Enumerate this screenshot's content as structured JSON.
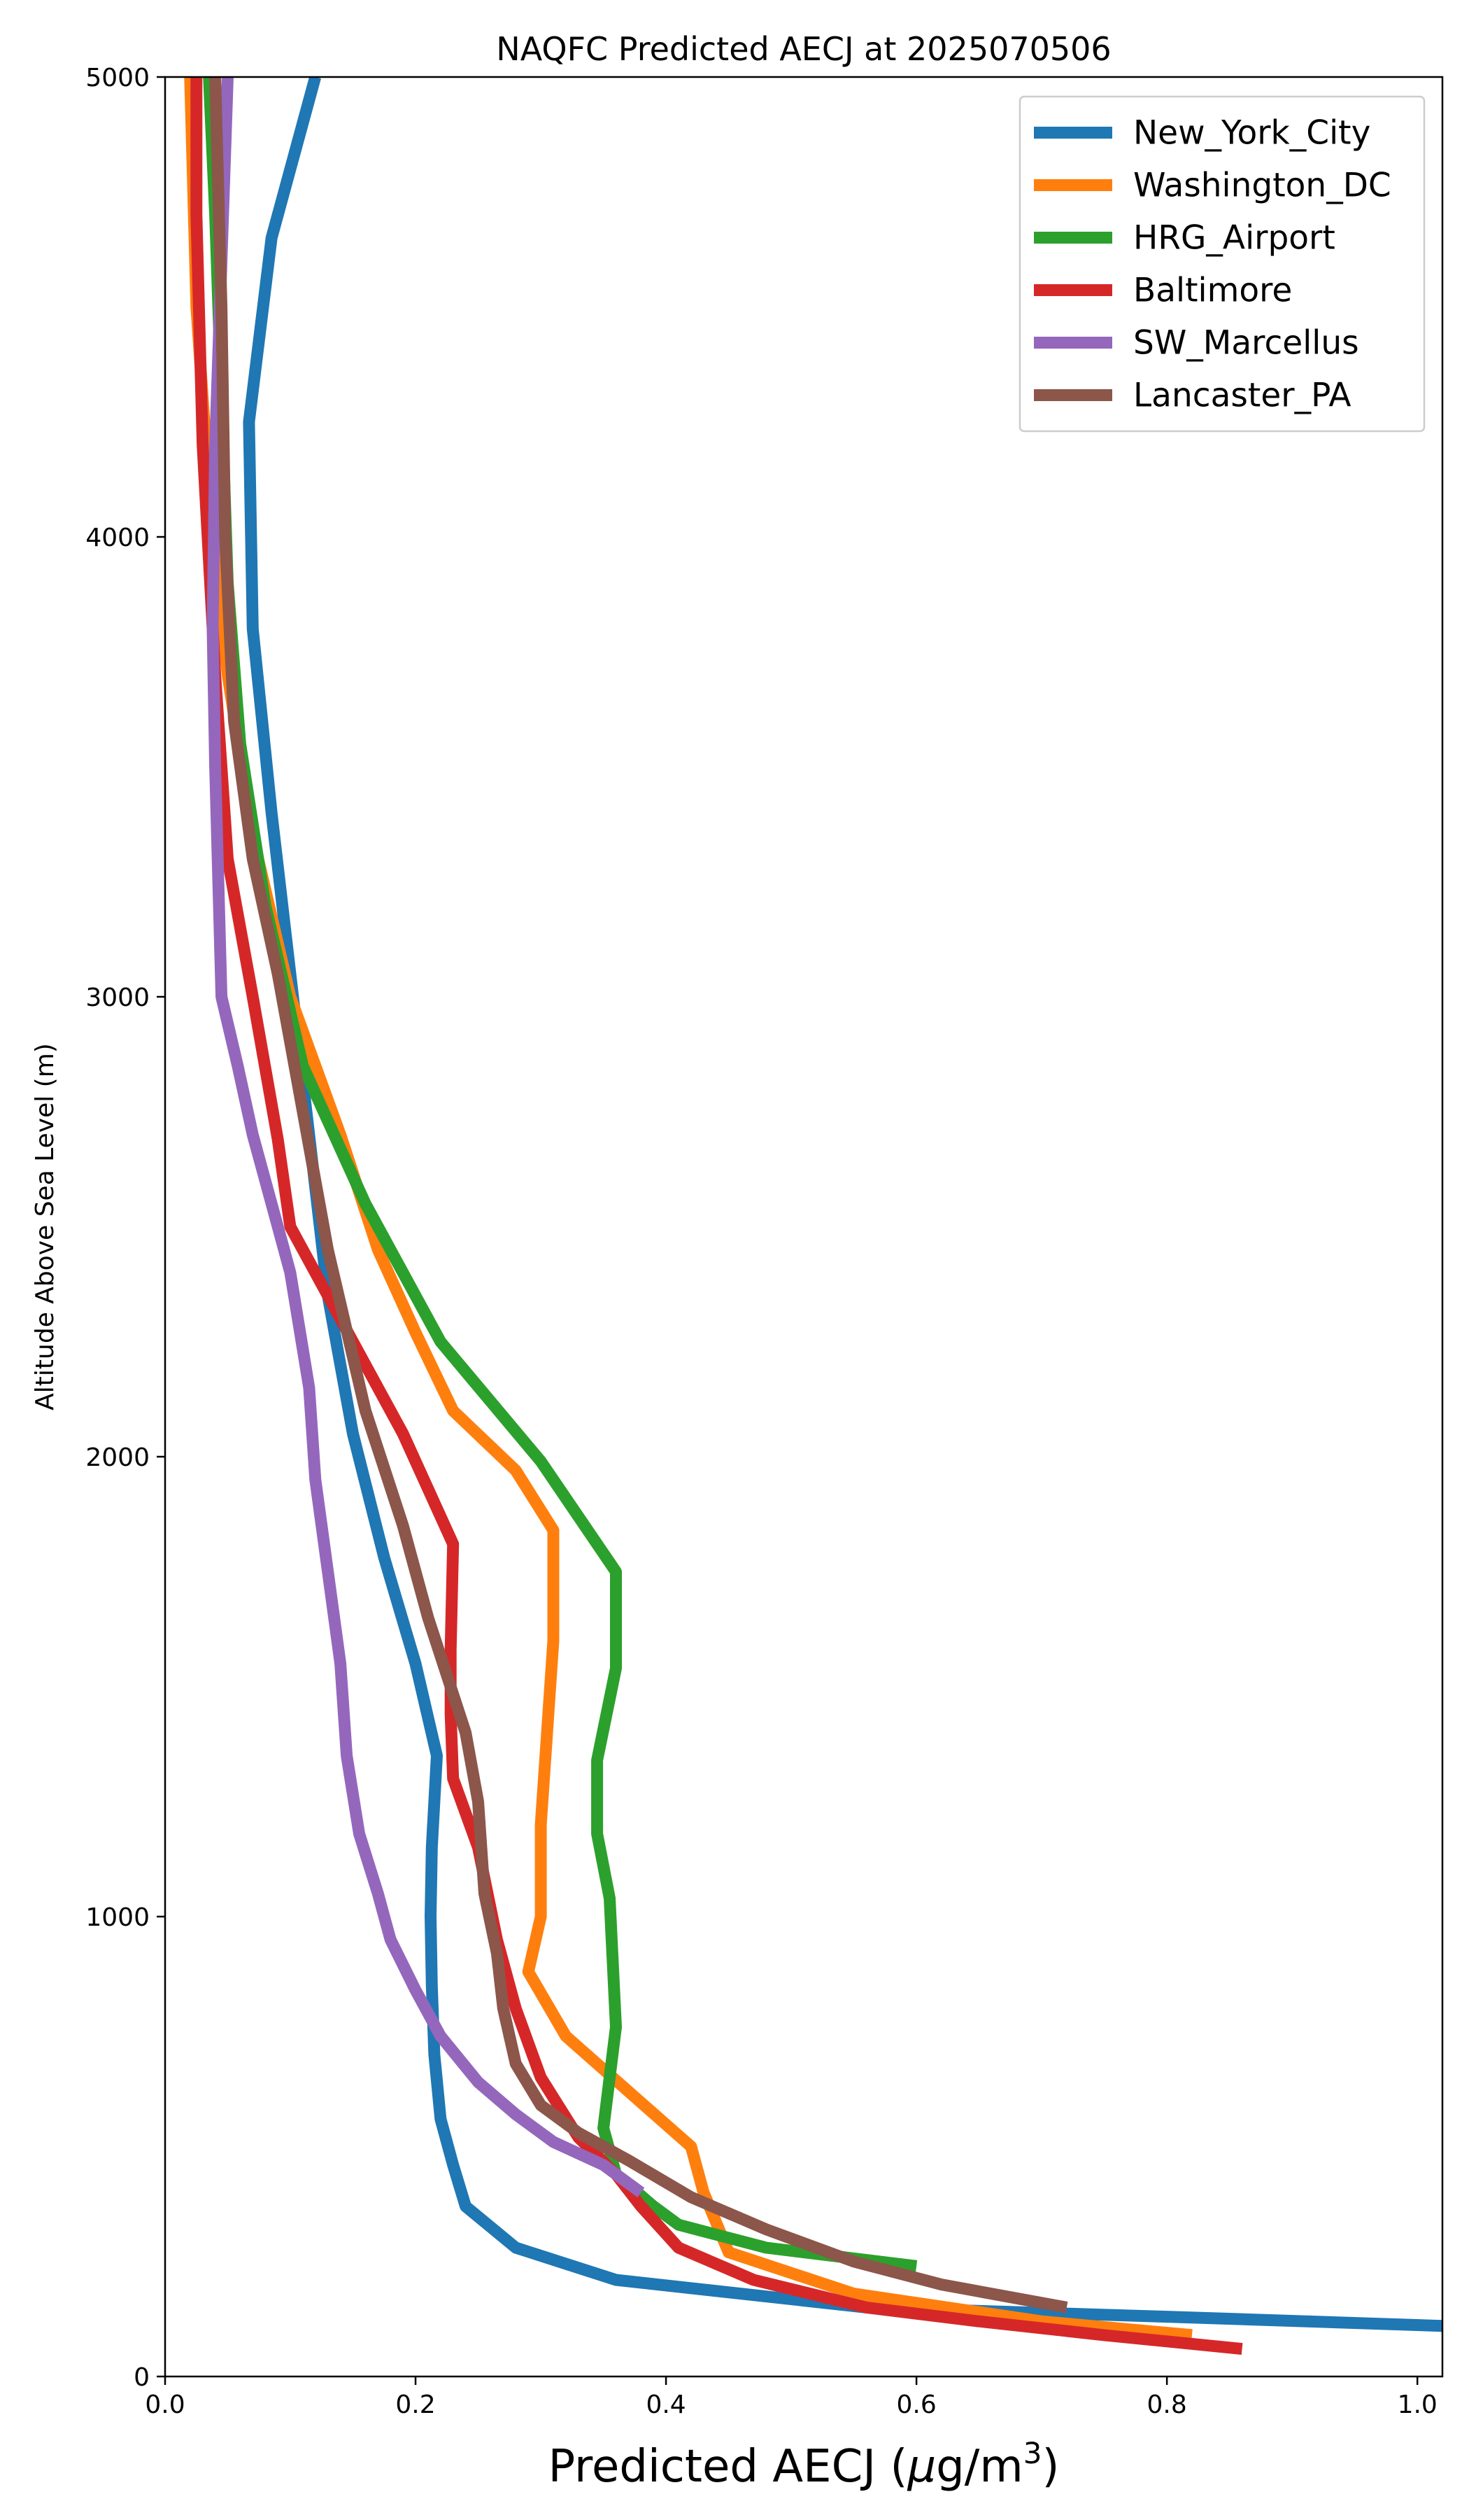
{
  "chart_data": {
    "type": "line",
    "title": "NAQFC Predicted AECJ at 2025070506",
    "xlabel": "Predicted AECJ (",
    "xlabel_unit_prefix": "μ",
    "xlabel_unit_main": "g/m",
    "xlabel_unit_sup": "3",
    "xlabel_close": ")",
    "ylabel": "Altitude Above Sea Level (m)",
    "xlim": [
      0.0,
      1.02
    ],
    "ylim": [
      0,
      5000
    ],
    "xticks": [
      0.0,
      0.2,
      0.4,
      0.6,
      0.8,
      1.0
    ],
    "xtick_labels": [
      "0.0",
      "0.2",
      "0.4",
      "0.6",
      "0.8",
      "1.0"
    ],
    "yticks": [
      0,
      1000,
      2000,
      3000,
      4000,
      5000
    ],
    "ytick_labels": [
      "0",
      "1000",
      "2000",
      "3000",
      "4000",
      "5000"
    ],
    "grid": false,
    "legend_position": "top-right",
    "series": [
      {
        "name": "New_York_City",
        "color": "#1f77b4",
        "points": [
          [
            1.02,
            110
          ],
          [
            0.8,
            130
          ],
          [
            0.56,
            150
          ],
          [
            0.36,
            210
          ],
          [
            0.28,
            280
          ],
          [
            0.24,
            370
          ],
          [
            0.23,
            460
          ],
          [
            0.22,
            560
          ],
          [
            0.215,
            700
          ],
          [
            0.213,
            850
          ],
          [
            0.212,
            1000
          ],
          [
            0.213,
            1150
          ],
          [
            0.217,
            1350
          ],
          [
            0.2,
            1550
          ],
          [
            0.175,
            1780
          ],
          [
            0.15,
            2050
          ],
          [
            0.13,
            2350
          ],
          [
            0.115,
            2700
          ],
          [
            0.1,
            3050
          ],
          [
            0.085,
            3400
          ],
          [
            0.07,
            3800
          ],
          [
            0.067,
            4250
          ],
          [
            0.085,
            4650
          ],
          [
            0.12,
            5000
          ]
        ]
      },
      {
        "name": "Washington_DC",
        "color": "#ff7f0e",
        "points": [
          [
            0.82,
            90
          ],
          [
            0.7,
            120
          ],
          [
            0.55,
            180
          ],
          [
            0.45,
            270
          ],
          [
            0.43,
            400
          ],
          [
            0.42,
            500
          ],
          [
            0.37,
            620
          ],
          [
            0.32,
            740
          ],
          [
            0.29,
            880
          ],
          [
            0.3,
            1000
          ],
          [
            0.3,
            1200
          ],
          [
            0.31,
            1600
          ],
          [
            0.31,
            1840
          ],
          [
            0.28,
            1970
          ],
          [
            0.23,
            2100
          ],
          [
            0.2,
            2270
          ],
          [
            0.17,
            2450
          ],
          [
            0.14,
            2700
          ],
          [
            0.1,
            3000
          ],
          [
            0.07,
            3350
          ],
          [
            0.05,
            3700
          ],
          [
            0.035,
            4100
          ],
          [
            0.025,
            4500
          ],
          [
            0.02,
            5000
          ]
        ]
      },
      {
        "name": "HRG_Airport",
        "color": "#2ca02c",
        "points": [
          [
            0.6,
            240
          ],
          [
            0.48,
            280
          ],
          [
            0.41,
            330
          ],
          [
            0.39,
            370
          ],
          [
            0.36,
            440
          ],
          [
            0.35,
            540
          ],
          [
            0.355,
            650
          ],
          [
            0.36,
            760
          ],
          [
            0.355,
            1040
          ],
          [
            0.345,
            1180
          ],
          [
            0.345,
            1340
          ],
          [
            0.36,
            1540
          ],
          [
            0.36,
            1750
          ],
          [
            0.3,
            1990
          ],
          [
            0.22,
            2250
          ],
          [
            0.16,
            2550
          ],
          [
            0.11,
            2850
          ],
          [
            0.08,
            3200
          ],
          [
            0.06,
            3550
          ],
          [
            0.05,
            3900
          ],
          [
            0.045,
            4300
          ],
          [
            0.04,
            4700
          ],
          [
            0.035,
            5000
          ]
        ]
      },
      {
        "name": "Baltimore",
        "color": "#d62728",
        "points": [
          [
            0.86,
            60
          ],
          [
            0.75,
            90
          ],
          [
            0.65,
            120
          ],
          [
            0.56,
            150
          ],
          [
            0.47,
            210
          ],
          [
            0.41,
            280
          ],
          [
            0.38,
            370
          ],
          [
            0.36,
            440
          ],
          [
            0.33,
            520
          ],
          [
            0.3,
            650
          ],
          [
            0.28,
            800
          ],
          [
            0.265,
            950
          ],
          [
            0.25,
            1150
          ],
          [
            0.23,
            1300
          ],
          [
            0.228,
            1440
          ],
          [
            0.228,
            1580
          ],
          [
            0.23,
            1810
          ],
          [
            0.19,
            2050
          ],
          [
            0.13,
            2350
          ],
          [
            0.1,
            2500
          ],
          [
            0.09,
            2690
          ],
          [
            0.07,
            3000
          ],
          [
            0.05,
            3300
          ],
          [
            0.04,
            3700
          ],
          [
            0.03,
            4200
          ],
          [
            0.025,
            4700
          ],
          [
            0.025,
            5000
          ]
        ]
      },
      {
        "name": "SW_Marcellus",
        "color": "#9467bd",
        "points": [
          [
            0.38,
            400
          ],
          [
            0.35,
            460
          ],
          [
            0.31,
            510
          ],
          [
            0.28,
            570
          ],
          [
            0.25,
            640
          ],
          [
            0.22,
            740
          ],
          [
            0.2,
            840
          ],
          [
            0.18,
            950
          ],
          [
            0.17,
            1050
          ],
          [
            0.155,
            1180
          ],
          [
            0.145,
            1350
          ],
          [
            0.14,
            1550
          ],
          [
            0.13,
            1750
          ],
          [
            0.12,
            1950
          ],
          [
            0.115,
            2150
          ],
          [
            0.1,
            2400
          ],
          [
            0.085,
            2550
          ],
          [
            0.07,
            2700
          ],
          [
            0.058,
            2850
          ],
          [
            0.045,
            3000
          ],
          [
            0.04,
            3500
          ],
          [
            0.038,
            3800
          ],
          [
            0.04,
            4200
          ],
          [
            0.045,
            4600
          ],
          [
            0.05,
            5000
          ]
        ]
      },
      {
        "name": "Lancaster_PA",
        "color": "#8c564b",
        "points": [
          [
            0.72,
            150
          ],
          [
            0.62,
            200
          ],
          [
            0.55,
            250
          ],
          [
            0.48,
            320
          ],
          [
            0.42,
            390
          ],
          [
            0.37,
            470
          ],
          [
            0.33,
            530
          ],
          [
            0.3,
            590
          ],
          [
            0.28,
            680
          ],
          [
            0.27,
            800
          ],
          [
            0.265,
            920
          ],
          [
            0.255,
            1050
          ],
          [
            0.25,
            1250
          ],
          [
            0.24,
            1400
          ],
          [
            0.21,
            1650
          ],
          [
            0.19,
            1850
          ],
          [
            0.16,
            2100
          ],
          [
            0.13,
            2450
          ],
          [
            0.11,
            2750
          ],
          [
            0.09,
            3050
          ],
          [
            0.07,
            3300
          ],
          [
            0.055,
            3600
          ],
          [
            0.048,
            4000
          ],
          [
            0.045,
            4500
          ],
          [
            0.04,
            5000
          ]
        ]
      }
    ]
  }
}
